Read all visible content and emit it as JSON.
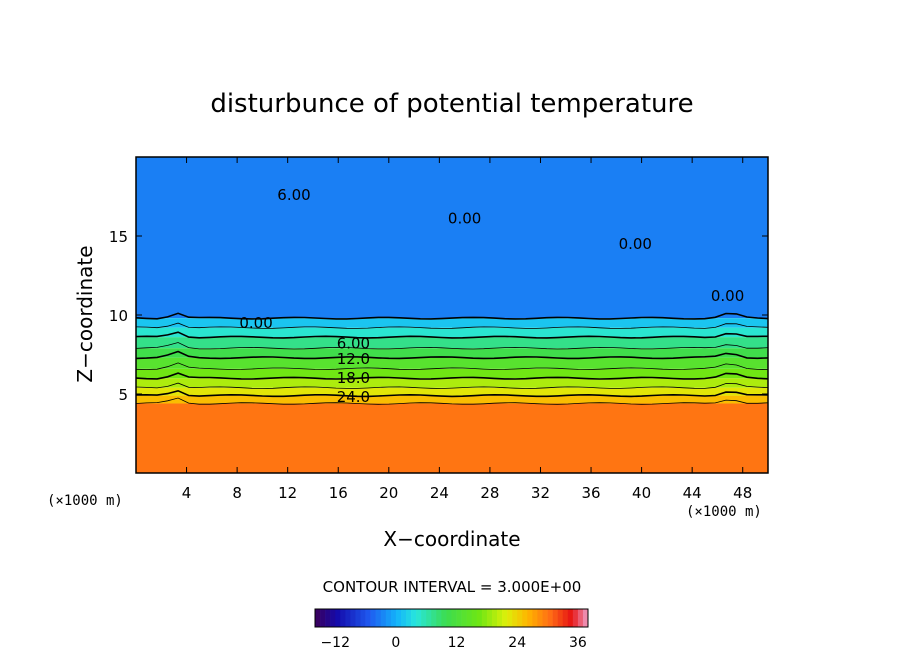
{
  "chart_data": {
    "type": "heatmap",
    "title": "disturbunce of potential temperature",
    "xlabel": "X−coordinate",
    "ylabel": "Z−coordinate",
    "x_unit": "(×1000 m)",
    "y_unit": "(×1000 m)",
    "xlim": [
      0,
      50
    ],
    "ylim": [
      0,
      20
    ],
    "x_ticks": [
      4,
      8,
      12,
      16,
      20,
      24,
      28,
      32,
      36,
      40,
      44,
      48
    ],
    "y_ticks": [
      5,
      10,
      15
    ],
    "contour_interval_text": "CONTOUR INTERVAL = 3.000E+00",
    "contour_interval": 3.0,
    "layers": [
      {
        "z": 4.4,
        "value": 27
      },
      {
        "z": 4.9,
        "value": 24
      },
      {
        "z": 5.4,
        "value": 21
      },
      {
        "z": 6.0,
        "value": 18
      },
      {
        "z": 6.6,
        "value": 15
      },
      {
        "z": 7.3,
        "value": 12
      },
      {
        "z": 7.9,
        "value": 9
      },
      {
        "z": 8.6,
        "value": 6
      },
      {
        "z": 9.2,
        "value": 3
      },
      {
        "z": 9.8,
        "value": 0
      }
    ],
    "lower_value": 30,
    "upper_value": -3,
    "contour_labels": [
      {
        "text": "6.00",
        "x": 12.5,
        "z": 17.6
      },
      {
        "text": "0.00",
        "x": 26.0,
        "z": 16.1
      },
      {
        "text": "0.00",
        "x": 39.5,
        "z": 14.5
      },
      {
        "text": "0.00",
        "x": 46.8,
        "z": 11.2
      },
      {
        "text": "0.00",
        "x": 9.5,
        "z": 9.5
      },
      {
        "text": "6.00",
        "x": 17.2,
        "z": 8.2
      },
      {
        "text": "12.0",
        "x": 17.2,
        "z": 7.2
      },
      {
        "text": "18.0",
        "x": 17.2,
        "z": 6.0
      },
      {
        "text": "24.0",
        "x": 17.2,
        "z": 4.8
      }
    ],
    "colorbar": {
      "min": -16,
      "max": 38,
      "ticks": [
        -12,
        0,
        12,
        24,
        36
      ]
    }
  }
}
